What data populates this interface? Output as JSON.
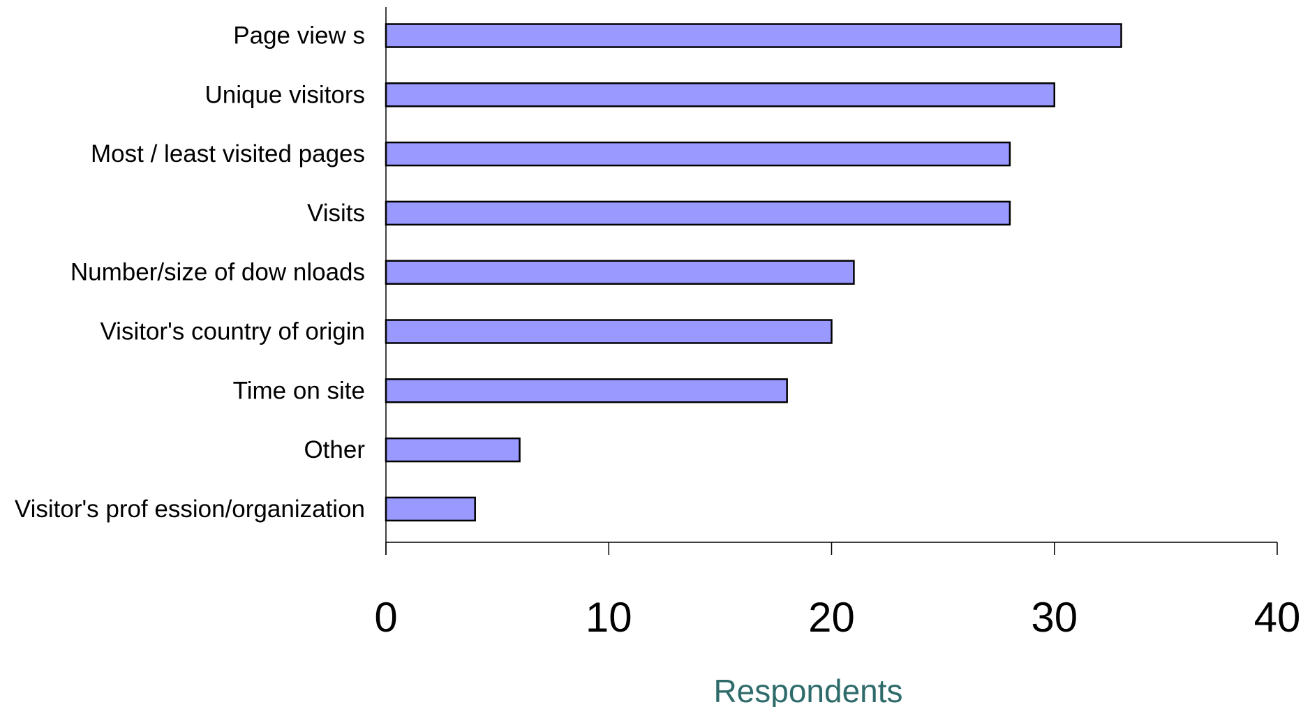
{
  "chart_data": {
    "type": "bar",
    "orientation": "horizontal",
    "categories": [
      "Page view s",
      "Unique visitors",
      "Most / least visited pages",
      "Visits",
      "Number/size of dow nloads",
      "Visitor's country of origin",
      "Time on site",
      "Other",
      "Visitor's prof ession/organization"
    ],
    "values": [
      33,
      30,
      28,
      28,
      21,
      20,
      18,
      6,
      4
    ],
    "title": "",
    "xlabel": "Respondents",
    "ylabel": "",
    "xlim": [
      0,
      40
    ],
    "xticks": [
      "0",
      "10",
      "20",
      "30",
      "40"
    ],
    "grid": false,
    "legend": "none",
    "colors": {
      "bar_fill": "#9999ff",
      "bar_stroke": "#000000",
      "axis": "#000000",
      "xlabel": "#2f6b6b"
    }
  }
}
